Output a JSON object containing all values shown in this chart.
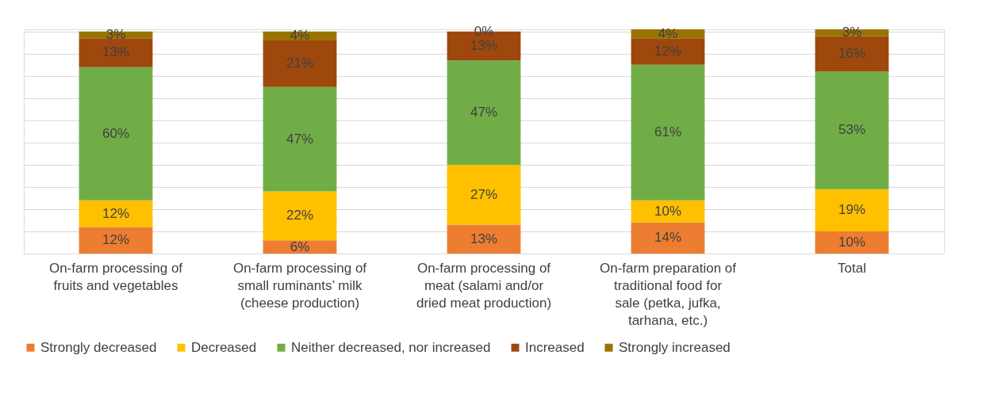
{
  "chart_data": {
    "type": "bar",
    "stacked": true,
    "legend": "bottom",
    "grid": "y",
    "tick_labels": "x",
    "categories": [
      "On-farm processing of fruits and vegetables",
      "On-farm processing of small ruminants’ milk (cheese production)",
      "On-farm processing of meat (salami and/or dried meat production)",
      "On-farm preparation of traditional food for sale (petka, jufka, tarhana, etc.)",
      "Total"
    ],
    "series": [
      {
        "name": "Strongly decreased",
        "color": "#ed7d31",
        "values": [
          12,
          6,
          13,
          14,
          10
        ],
        "value_labels": [
          "12%",
          "6%",
          "13%",
          "14%",
          "10%"
        ]
      },
      {
        "name": "Decreased",
        "color": "#ffc000",
        "values": [
          12,
          22,
          27,
          10,
          19
        ],
        "value_labels": [
          "12%",
          "22%",
          "27%",
          "10%",
          "19%"
        ]
      },
      {
        "name": "Neither decreased, nor increased",
        "color": "#70ad47",
        "values": [
          60,
          47,
          47,
          61,
          53
        ],
        "value_labels": [
          "60%",
          "47%",
          "47%",
          "61%",
          "53%"
        ]
      },
      {
        "name": "Increased",
        "color": "#9e480e",
        "values": [
          13,
          21,
          13,
          12,
          16
        ],
        "value_labels": [
          "13%",
          "21%",
          "13%",
          "12%",
          "16%"
        ]
      },
      {
        "name": "Strongly increased",
        "color": "#997300",
        "values": [
          3,
          4,
          0,
          4,
          3
        ],
        "value_labels": [
          "3%",
          "4%",
          "0%",
          "4%",
          "3%"
        ]
      }
    ]
  }
}
